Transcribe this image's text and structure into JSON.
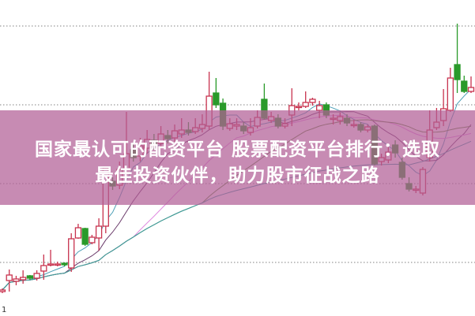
{
  "headline": {
    "line1": "国家最认可的配资平台 股票配资平台排行：选取",
    "line2": "最佳投资伙伴，助力股市征战之路"
  },
  "corner_label": "1",
  "chart_data": {
    "type": "candlestick",
    "title": "",
    "xlabel": "",
    "ylabel": "",
    "ylim": [
      0,
      400
    ],
    "grid": {
      "on": true,
      "style": "dotted",
      "levels": [
        67,
        167,
        267,
        367
      ]
    },
    "ohlc_order": [
      "open",
      "close",
      "high",
      "low"
    ],
    "candles": [
      [
        30,
        32,
        34,
        28
      ],
      [
        44,
        51,
        58,
        30
      ],
      [
        43,
        46,
        50,
        38
      ],
      [
        45,
        48,
        57,
        40
      ],
      [
        50,
        47,
        51,
        45
      ],
      [
        47,
        53,
        57,
        44
      ],
      [
        56,
        63,
        77,
        45
      ],
      [
        64,
        65,
        83,
        62
      ],
      [
        64,
        65,
        68,
        62
      ],
      [
        66,
        64,
        67,
        62
      ],
      [
        60,
        97,
        104,
        55
      ],
      [
        98,
        111,
        116,
        97
      ],
      [
        110,
        90,
        111,
        88
      ],
      [
        92,
        99,
        102,
        90
      ],
      [
        98,
        113,
        123,
        82
      ],
      [
        113,
        187,
        188,
        104
      ],
      [
        170,
        164,
        175,
        159
      ],
      [
        165,
        185,
        195,
        160
      ],
      [
        185,
        205,
        258,
        180
      ],
      [
        210,
        200,
        220,
        195
      ],
      [
        202,
        215,
        225,
        195
      ],
      [
        212,
        223,
        235,
        205
      ],
      [
        222,
        217,
        230,
        210
      ],
      [
        218,
        230,
        240,
        212
      ],
      [
        228,
        224,
        235,
        218
      ],
      [
        225,
        234,
        242,
        220
      ],
      [
        230,
        235,
        250,
        225
      ],
      [
        235,
        232,
        245,
        228
      ],
      [
        233,
        238,
        250,
        230
      ],
      [
        237,
        242,
        255,
        232
      ],
      [
        240,
        278,
        309,
        235
      ],
      [
        282,
        267,
        301,
        263
      ],
      [
        269,
        240,
        275,
        235
      ],
      [
        237,
        243,
        250,
        234
      ],
      [
        240,
        242,
        250,
        235
      ],
      [
        240,
        234,
        245,
        230
      ],
      [
        232,
        238,
        250,
        228
      ],
      [
        240,
        251,
        260,
        237
      ],
      [
        274,
        250,
        294,
        248
      ],
      [
        247,
        252,
        258,
        244
      ],
      [
        250,
        240,
        255,
        237
      ],
      [
        240,
        243,
        250,
        237
      ],
      [
        254,
        266,
        288,
        240
      ],
      [
        265,
        265,
        270,
        260
      ],
      [
        265,
        270,
        284,
        263
      ],
      [
        270,
        274,
        276,
        266
      ],
      [
        260,
        266,
        272,
        250
      ],
      [
        267,
        254,
        270,
        250
      ],
      [
        250,
        250,
        255,
        242
      ],
      [
        247,
        252,
        257,
        242
      ],
      [
        250,
        244,
        255,
        240
      ],
      [
        242,
        242,
        248,
        238
      ],
      [
        242,
        235,
        245,
        232
      ],
      [
        235,
        239,
        242,
        232
      ],
      [
        240,
        192,
        242,
        190
      ],
      [
        195,
        200,
        205,
        190
      ],
      [
        197,
        207,
        215,
        193
      ],
      [
        216,
        206,
        222,
        200
      ],
      [
        194,
        175,
        200,
        172
      ],
      [
        167,
        160,
        175,
        157
      ],
      [
        160,
        160,
        164,
        155
      ],
      [
        155,
        185,
        188,
        152
      ],
      [
        200,
        235,
        260,
        195
      ],
      [
        238,
        245,
        263,
        235
      ],
      [
        247,
        262,
        287,
        240
      ],
      [
        260,
        301,
        314,
        258
      ],
      [
        318,
        299,
        370,
        282
      ],
      [
        297,
        284,
        304,
        282
      ],
      [
        284,
        289,
        303,
        282
      ]
    ],
    "moving_averages": [
      {
        "period": 5,
        "color": "#4a9db5"
      },
      {
        "period": 10,
        "color": "#6a3a6a"
      },
      {
        "period": 20,
        "color": "#e08ae0"
      },
      {
        "period": 30,
        "color": "#5a8a3a"
      },
      {
        "period": 60,
        "color": "#3a9aa0"
      }
    ],
    "colors": {
      "up": "#c8324e",
      "down": "#2a9a2a",
      "grid": "#9a9a9a"
    }
  }
}
